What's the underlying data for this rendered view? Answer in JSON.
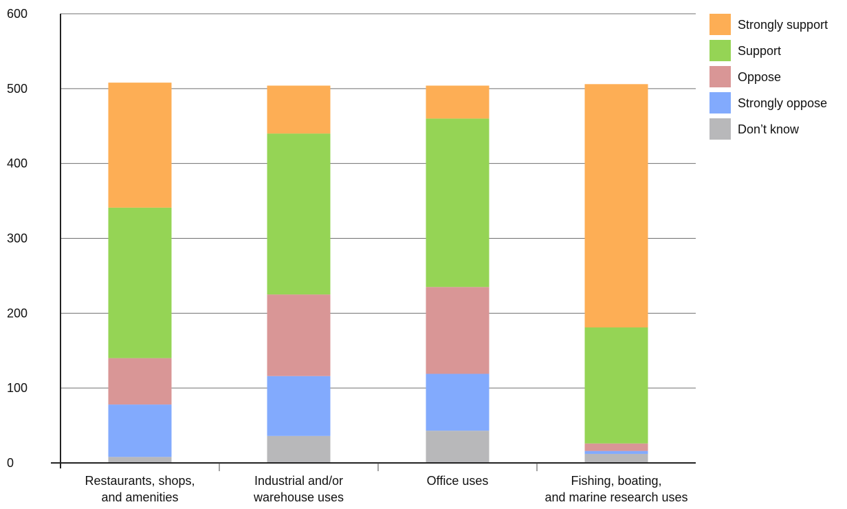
{
  "chart_data": {
    "type": "bar",
    "stacked": true,
    "categories": [
      [
        "Restaurants, shops,",
        "and amenities"
      ],
      [
        "Industrial and/or",
        "warehouse uses"
      ],
      [
        "Office uses"
      ],
      [
        "Fishing, boating,",
        "and marine research uses"
      ]
    ],
    "series": [
      {
        "name": "Don’t know",
        "color": "#b8b8ba",
        "values": [
          8,
          36,
          43,
          12
        ]
      },
      {
        "name": "Strongly oppose",
        "color": "#82aafd",
        "values": [
          70,
          80,
          76,
          4
        ]
      },
      {
        "name": "Oppose",
        "color": "#d99696",
        "values": [
          62,
          109,
          116,
          10
        ]
      },
      {
        "name": "Support",
        "color": "#95d455",
        "values": [
          201,
          215,
          225,
          155
        ]
      },
      {
        "name": "Strongly support",
        "color": "#fdae55",
        "values": [
          167,
          64,
          44,
          325
        ]
      }
    ],
    "legend_order": [
      "Strongly support",
      "Support",
      "Oppose",
      "Strongly oppose",
      "Don’t know"
    ],
    "ylim": [
      0,
      600
    ],
    "yticks": [
      "0",
      "100",
      "200",
      "300",
      "400",
      "500",
      "600"
    ],
    "title": "",
    "xlabel": "",
    "ylabel": "",
    "grid": true,
    "legend_position": "right"
  }
}
